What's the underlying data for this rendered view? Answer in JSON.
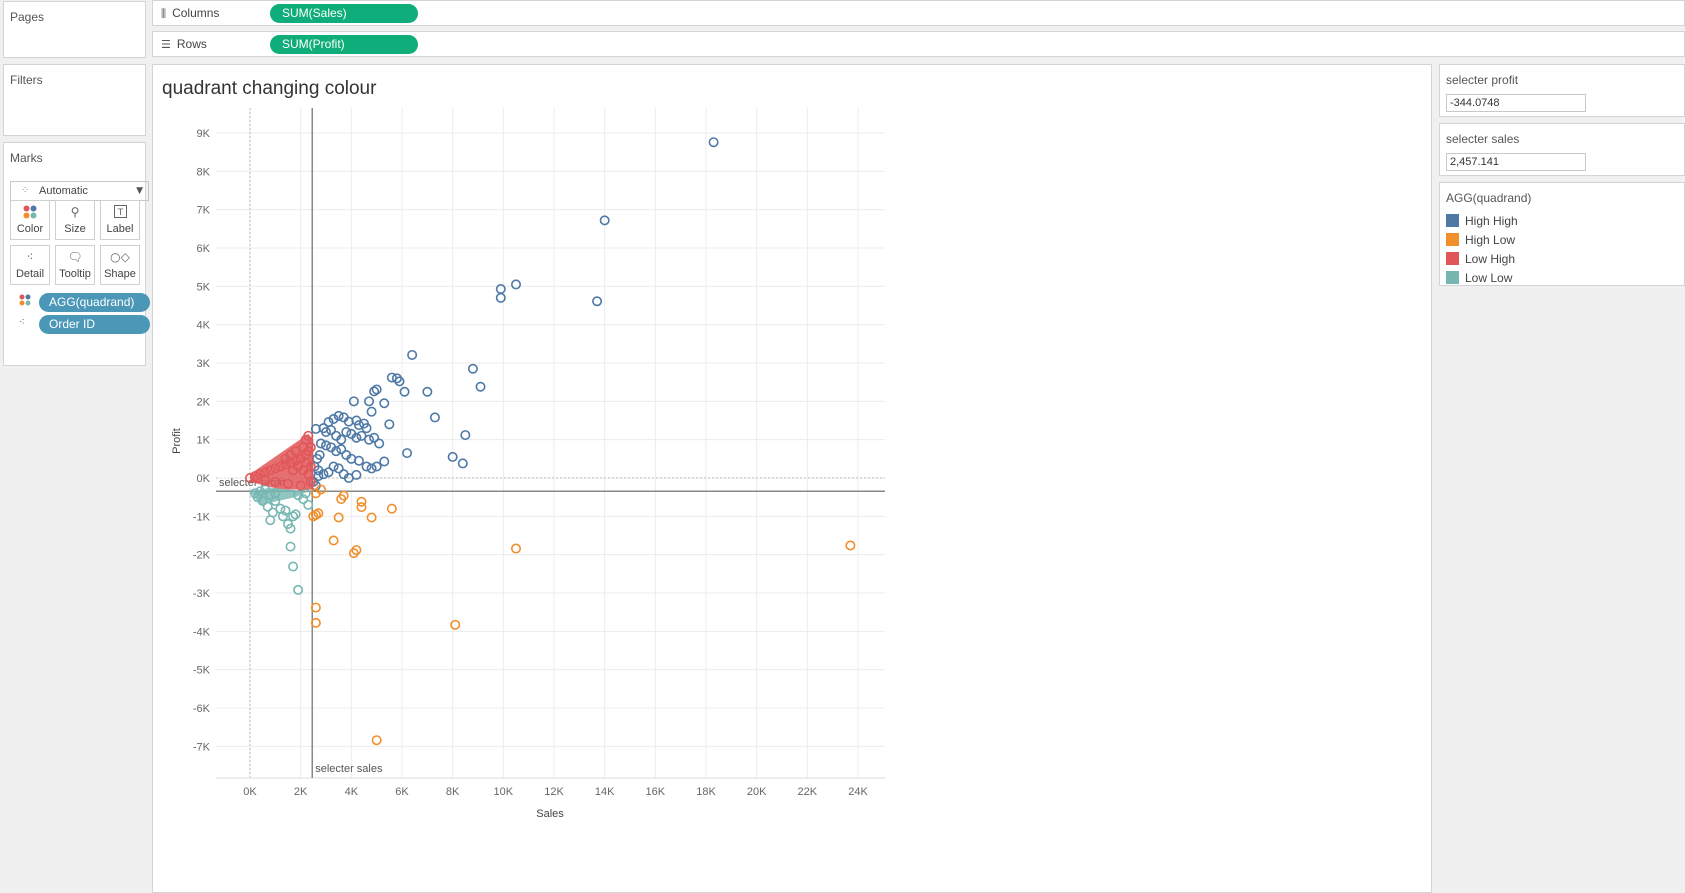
{
  "cards": {
    "pages": "Pages",
    "filters": "Filters",
    "marks": "Marks"
  },
  "shelves": {
    "columns": {
      "label": "Columns",
      "pill": "SUM(Sales)",
      "icon": "columns-icon"
    },
    "rows": {
      "label": "Rows",
      "pill": "SUM(Profit)",
      "icon": "rows-icon"
    }
  },
  "marks": {
    "type": "Automatic",
    "buttons": [
      "Color",
      "Size",
      "Label",
      "Detail",
      "Tooltip",
      "Shape"
    ],
    "pills": [
      {
        "label": "AGG(quadrand)",
        "icon": "color-dots-icon"
      },
      {
        "label": "Order ID",
        "icon": "detail-dots-icon"
      }
    ]
  },
  "parameters": [
    {
      "title": "selecter profit",
      "value": "-344.0748"
    },
    {
      "title": "selecter sales",
      "value": "2,457.141"
    }
  ],
  "legend": {
    "title": "AGG(quadrand)",
    "items": [
      {
        "label": "High High",
        "color": "#4e79a7"
      },
      {
        "label": "High Low",
        "color": "#f28e2b"
      },
      {
        "label": "Low High",
        "color": "#e15759"
      },
      {
        "label": "Low Low",
        "color": "#76b7b2"
      }
    ]
  },
  "chart_data": {
    "type": "scatter",
    "title": "quadrant changing colour",
    "xlabel": "Sales",
    "ylabel": "Profit",
    "xlim": [
      -1400,
      25000
    ],
    "ylim": [
      -7800,
      9400
    ],
    "x_ticks": [
      0,
      2000,
      4000,
      6000,
      8000,
      10000,
      12000,
      14000,
      16000,
      18000,
      20000,
      22000,
      24000
    ],
    "x_tick_labels": [
      "0K",
      "2K",
      "4K",
      "6K",
      "8K",
      "10K",
      "12K",
      "14K",
      "16K",
      "18K",
      "20K",
      "22K",
      "24K"
    ],
    "y_ticks": [
      9000,
      8000,
      7000,
      6000,
      5000,
      4000,
      3000,
      2000,
      1000,
      0,
      -1000,
      -2000,
      -3000,
      -4000,
      -5000,
      -6000,
      -7000
    ],
    "y_tick_labels": [
      "9K",
      "8K",
      "7K",
      "6K",
      "5K",
      "4K",
      "3K",
      "2K",
      "1K",
      "0K",
      "-1K",
      "-2K",
      "-3K",
      "-4K",
      "-5K",
      "-6K",
      "-7K"
    ],
    "reference_lines": [
      {
        "axis": "y",
        "value": -344.0748,
        "label": "selecter profit"
      },
      {
        "axis": "x",
        "value": 2457.141,
        "label": "selecter sales"
      }
    ],
    "grid": true,
    "marker": "open-circle",
    "series": [
      {
        "name": "High High",
        "color": "#4e79a7",
        "points": [
          [
            18300,
            8760
          ],
          [
            14000,
            6720
          ],
          [
            10500,
            5050
          ],
          [
            9900,
            4930
          ],
          [
            9900,
            4700
          ],
          [
            13700,
            4610
          ],
          [
            6400,
            3210
          ],
          [
            8800,
            2850
          ],
          [
            9100,
            2380
          ],
          [
            5600,
            2620
          ],
          [
            5800,
            2600
          ],
          [
            5900,
            2520
          ],
          [
            6100,
            2250
          ],
          [
            7000,
            2250
          ],
          [
            4900,
            2260
          ],
          [
            5000,
            2310
          ],
          [
            4100,
            2000
          ],
          [
            4700,
            2000
          ],
          [
            5300,
            1950
          ],
          [
            4800,
            1730
          ],
          [
            7300,
            1580
          ],
          [
            5500,
            1400
          ],
          [
            8500,
            1120
          ],
          [
            6200,
            650
          ],
          [
            8000,
            550
          ],
          [
            8400,
            380
          ],
          [
            3100,
            1460
          ],
          [
            3300,
            1540
          ],
          [
            3500,
            1620
          ],
          [
            3700,
            1580
          ],
          [
            3900,
            1470
          ],
          [
            4200,
            1500
          ],
          [
            4300,
            1380
          ],
          [
            4500,
            1420
          ],
          [
            4600,
            1300
          ],
          [
            3000,
            1200
          ],
          [
            3200,
            1250
          ],
          [
            3400,
            1100
          ],
          [
            3600,
            1000
          ],
          [
            3800,
            1200
          ],
          [
            4000,
            1150
          ],
          [
            4200,
            1050
          ],
          [
            4400,
            1100
          ],
          [
            4700,
            1000
          ],
          [
            4900,
            1050
          ],
          [
            5100,
            900
          ],
          [
            2600,
            1280
          ],
          [
            2900,
            1300
          ],
          [
            2800,
            900
          ],
          [
            3000,
            850
          ],
          [
            3200,
            800
          ],
          [
            3400,
            700
          ],
          [
            3600,
            750
          ],
          [
            3800,
            600
          ],
          [
            4000,
            500
          ],
          [
            4300,
            450
          ],
          [
            4600,
            300
          ],
          [
            4800,
            250
          ],
          [
            5000,
            300
          ],
          [
            5300,
            430
          ],
          [
            2700,
            200
          ],
          [
            2900,
            100
          ],
          [
            3100,
            150
          ],
          [
            3300,
            300
          ],
          [
            3500,
            250
          ],
          [
            3700,
            100
          ],
          [
            3900,
            0
          ],
          [
            4200,
            80
          ],
          [
            2500,
            -100
          ],
          [
            2600,
            -200
          ],
          [
            2700,
            50
          ],
          [
            2550,
            300
          ],
          [
            2650,
            500
          ],
          [
            2750,
            600
          ]
        ]
      },
      {
        "name": "High Low",
        "color": "#f28e2b",
        "points": [
          [
            23700,
            -1760
          ],
          [
            10500,
            -1840
          ],
          [
            5000,
            -6840
          ],
          [
            8100,
            -3830
          ],
          [
            2600,
            -3380
          ],
          [
            2600,
            -3780
          ],
          [
            4200,
            -1880
          ],
          [
            4100,
            -1960
          ],
          [
            3300,
            -1630
          ],
          [
            5600,
            -800
          ],
          [
            4800,
            -1030
          ],
          [
            4400,
            -620
          ],
          [
            4400,
            -760
          ],
          [
            3500,
            -1030
          ],
          [
            3700,
            -460
          ],
          [
            3600,
            -550
          ],
          [
            2700,
            -920
          ],
          [
            2600,
            -960
          ],
          [
            2500,
            -1000
          ],
          [
            2600,
            -400
          ],
          [
            2800,
            -300
          ]
        ]
      },
      {
        "name": "Low High",
        "color": "#e15759",
        "points": [
          [
            0,
            0
          ],
          [
            200,
            50
          ],
          [
            400,
            100
          ],
          [
            600,
            150
          ],
          [
            800,
            200
          ],
          [
            1000,
            250
          ],
          [
            1200,
            300
          ],
          [
            1400,
            350
          ],
          [
            1600,
            400
          ],
          [
            1800,
            450
          ],
          [
            2000,
            500
          ],
          [
            2200,
            600
          ],
          [
            2300,
            700
          ],
          [
            2400,
            800
          ],
          [
            1800,
            700
          ],
          [
            1600,
            600
          ],
          [
            1400,
            500
          ],
          [
            2200,
            1000
          ],
          [
            2300,
            1100
          ],
          [
            2100,
            800
          ],
          [
            1900,
            300
          ],
          [
            2100,
            200
          ],
          [
            2300,
            100
          ],
          [
            2400,
            -100
          ],
          [
            2000,
            -200
          ],
          [
            1500,
            -150
          ],
          [
            1000,
            -100
          ],
          [
            600,
            -50
          ],
          [
            300,
            0
          ],
          [
            1700,
            200
          ],
          [
            2200,
            400
          ],
          [
            2400,
            300
          ]
        ]
      },
      {
        "name": "Low Low",
        "color": "#76b7b2",
        "points": [
          [
            1900,
            -2920
          ],
          [
            1700,
            -2310
          ],
          [
            1600,
            -1790
          ],
          [
            1600,
            -1320
          ],
          [
            1700,
            -1000
          ],
          [
            1300,
            -1000
          ],
          [
            800,
            -1100
          ],
          [
            900,
            -900
          ],
          [
            700,
            -750
          ],
          [
            500,
            -600
          ],
          [
            300,
            -500
          ],
          [
            200,
            -400
          ],
          [
            400,
            -350
          ],
          [
            600,
            -300
          ],
          [
            1000,
            -600
          ],
          [
            1200,
            -800
          ],
          [
            1400,
            -850
          ],
          [
            1500,
            -1200
          ],
          [
            1800,
            -950
          ],
          [
            2100,
            -550
          ],
          [
            2200,
            -400
          ],
          [
            1900,
            -450
          ],
          [
            1000,
            -400
          ],
          [
            800,
            -450
          ],
          [
            2300,
            -700
          ]
        ]
      }
    ]
  }
}
